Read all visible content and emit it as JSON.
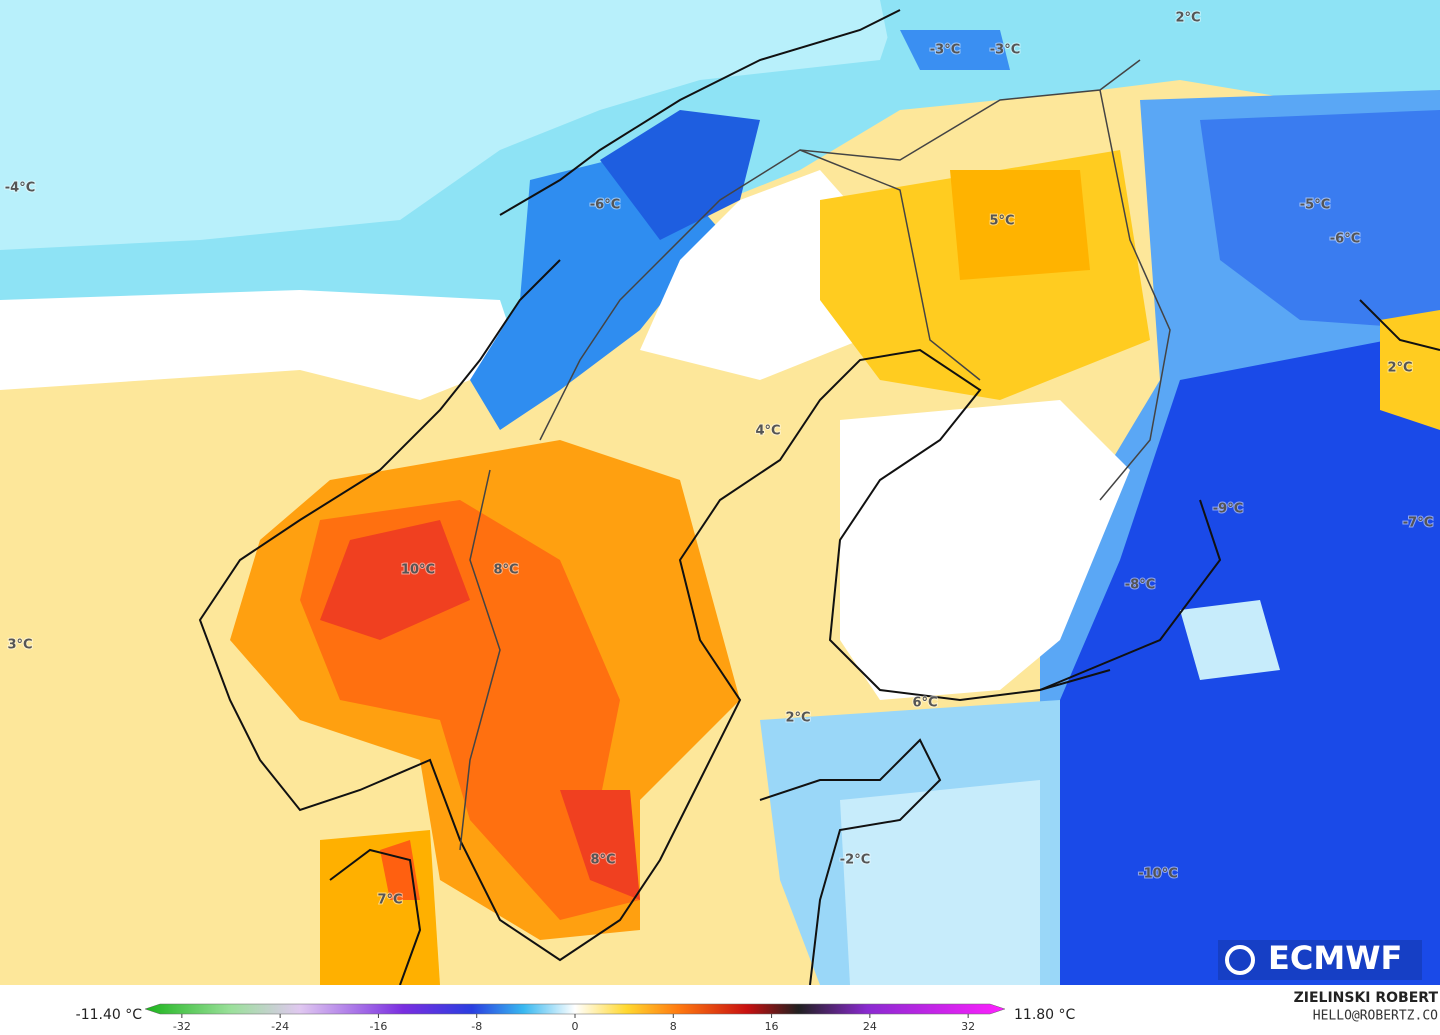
{
  "map": {
    "labels": [
      "-4°C",
      "-3°C",
      "-3°C",
      "2°C",
      "-5°C",
      "-6°C",
      "5°C",
      "-6°C",
      "2°C",
      "4°C",
      "-9°C",
      "-7°C",
      "10°C",
      "8°C",
      "-8°C",
      "3°C",
      "2°C",
      "6°C",
      "-2°C",
      "8°C",
      "-10°C",
      "7°C"
    ]
  },
  "colorbar": {
    "min_label": "-11.40 °C",
    "max_label": "11.80 °C",
    "lim": [
      -35,
      35
    ],
    "ticks": [
      -32,
      -24,
      -16,
      -8,
      0,
      8,
      16,
      24,
      32
    ]
  },
  "logo": "ECMWF",
  "credit": {
    "name": "ZIELINSKI ROBERT",
    "email": "HELLO@ROBERTZ.CO"
  }
}
